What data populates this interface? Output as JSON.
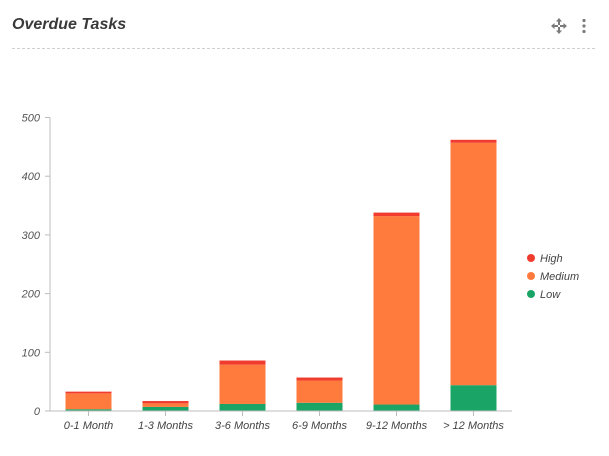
{
  "widget": {
    "title": "Overdue Tasks",
    "icons": [
      "move-icon",
      "more-vertical-icon"
    ]
  },
  "chart_data": {
    "type": "bar",
    "stacked": true,
    "categories": [
      "0-1 Month",
      "1-3 Months",
      "3-6 Months",
      "6-9 Months",
      "9-12 Months",
      "> 12 Months"
    ],
    "series": [
      {
        "name": "Low",
        "color": "#1aa566",
        "values": [
          3,
          7,
          12,
          14,
          11,
          44
        ]
      },
      {
        "name": "Medium",
        "color": "#ff7a3d",
        "values": [
          27,
          6,
          67,
          38,
          321,
          413
        ]
      },
      {
        "name": "High",
        "color": "#f03c2e",
        "values": [
          3,
          4,
          7,
          5,
          6,
          5
        ]
      }
    ],
    "yticks": [
      0,
      100,
      200,
      300,
      400,
      500
    ],
    "ylim": [
      0,
      500
    ],
    "legend_position": "right",
    "legend_order": [
      "High",
      "Medium",
      "Low"
    ],
    "grid": false
  }
}
